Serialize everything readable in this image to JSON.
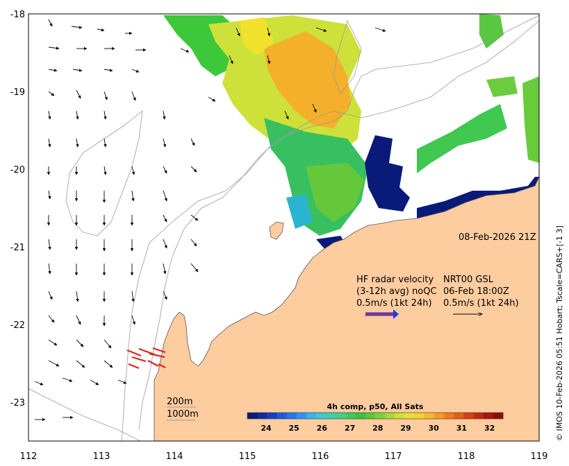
{
  "map": {
    "lon_ticks": [
      "112",
      "113",
      "114",
      "115",
      "116",
      "117",
      "118",
      "119"
    ],
    "lat_ticks": [
      "-18",
      "-19",
      "-20",
      "-21",
      "-22",
      "-23"
    ],
    "datetime_label": "08-Feb-2026 21Z",
    "legend": {
      "hf_line1": "HF radar velocity",
      "hf_line2": "(3-12h avg) noQC",
      "hf_line3": "0.5m/s (1kt 24h)",
      "nrt_line1": "NRT00 GSL",
      "nrt_line2": "06-Feb 18:00Z",
      "nrt_line3": "0.5m/s (1kt 24h)"
    },
    "contour_labels": {
      "shallow": "200m",
      "deep": "1000m"
    },
    "colorbar": {
      "title": "4h comp, p50, All Sats",
      "ticks": [
        "24",
        "25",
        "26",
        "27",
        "28",
        "29",
        "30",
        "31",
        "32"
      ]
    },
    "credit": "© IMOS 10-Feb-2026 05:51 Hobart; Tscale=CARS+[-1 3]",
    "colors": {
      "land": "#fdcc9f",
      "hf_arrow": "#e02020",
      "hf_arrow_outline": "#1d3df0"
    }
  }
}
